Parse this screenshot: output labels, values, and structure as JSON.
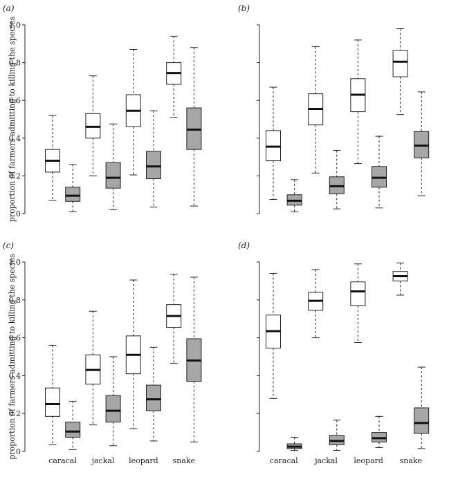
{
  "colors": {
    "axis": "#222222",
    "box_light": "#ffffff",
    "box_dark": "#a6a6a6",
    "median": "#111111"
  },
  "chart_data": [
    {
      "type": "box",
      "panel_label": "(a)",
      "ylabel": "proportion of farmers admitting to killing the species",
      "ylim": [
        0,
        1
      ],
      "yticks": [
        "0",
        "0.2",
        "0.4",
        "0.6",
        "0.8",
        "1.0"
      ],
      "show_yticklabels": true,
      "categories": [
        "caracal",
        "jackal",
        "leopard",
        "snake"
      ],
      "show_xticklabels": false,
      "boxes": [
        {
          "category": "caracal",
          "shade": "light",
          "whisker_low": 0.07,
          "q1": 0.22,
          "median": 0.28,
          "q3": 0.34,
          "whisker_high": 0.52
        },
        {
          "category": "caracal",
          "shade": "dark",
          "whisker_low": 0.01,
          "q1": 0.065,
          "median": 0.095,
          "q3": 0.14,
          "whisker_high": 0.26
        },
        {
          "category": "jackal",
          "shade": "light",
          "whisker_low": 0.2,
          "q1": 0.4,
          "median": 0.46,
          "q3": 0.53,
          "whisker_high": 0.73
        },
        {
          "category": "jackal",
          "shade": "dark",
          "whisker_low": 0.02,
          "q1": 0.135,
          "median": 0.19,
          "q3": 0.27,
          "whisker_high": 0.475
        },
        {
          "category": "leopard",
          "shade": "light",
          "whisker_low": 0.205,
          "q1": 0.46,
          "median": 0.545,
          "q3": 0.63,
          "whisker_high": 0.87
        },
        {
          "category": "leopard",
          "shade": "dark",
          "whisker_low": 0.035,
          "q1": 0.185,
          "median": 0.25,
          "q3": 0.33,
          "whisker_high": 0.545
        },
        {
          "category": "snake",
          "shade": "light",
          "whisker_low": 0.51,
          "q1": 0.685,
          "median": 0.745,
          "q3": 0.8,
          "whisker_high": 0.94
        },
        {
          "category": "snake",
          "shade": "dark",
          "whisker_low": 0.04,
          "q1": 0.34,
          "median": 0.445,
          "q3": 0.56,
          "whisker_high": 0.88
        }
      ]
    },
    {
      "type": "box",
      "panel_label": "(b)",
      "ylabel": "",
      "ylim": [
        0,
        1
      ],
      "yticks": [
        "0",
        "0.2",
        "0.4",
        "0.6",
        "0.8",
        "1.0"
      ],
      "show_yticklabels": false,
      "categories": [
        "caracal",
        "jackal",
        "leopard",
        "snake"
      ],
      "show_xticklabels": false,
      "boxes": [
        {
          "category": "caracal",
          "shade": "light",
          "whisker_low": 0.075,
          "q1": 0.28,
          "median": 0.355,
          "q3": 0.44,
          "whisker_high": 0.67
        },
        {
          "category": "caracal",
          "shade": "dark",
          "whisker_low": 0.01,
          "q1": 0.045,
          "median": 0.068,
          "q3": 0.1,
          "whisker_high": 0.18
        },
        {
          "category": "jackal",
          "shade": "light",
          "whisker_low": 0.215,
          "q1": 0.47,
          "median": 0.555,
          "q3": 0.635,
          "whisker_high": 0.885
        },
        {
          "category": "jackal",
          "shade": "dark",
          "whisker_low": 0.025,
          "q1": 0.105,
          "median": 0.145,
          "q3": 0.195,
          "whisker_high": 0.335
        },
        {
          "category": "leopard",
          "shade": "light",
          "whisker_low": 0.265,
          "q1": 0.54,
          "median": 0.63,
          "q3": 0.715,
          "whisker_high": 0.92
        },
        {
          "category": "leopard",
          "shade": "dark",
          "whisker_low": 0.03,
          "q1": 0.14,
          "median": 0.19,
          "q3": 0.25,
          "whisker_high": 0.41
        },
        {
          "category": "snake",
          "shade": "light",
          "whisker_low": 0.525,
          "q1": 0.725,
          "median": 0.805,
          "q3": 0.865,
          "whisker_high": 0.98
        },
        {
          "category": "snake",
          "shade": "dark",
          "whisker_low": 0.095,
          "q1": 0.295,
          "median": 0.36,
          "q3": 0.435,
          "whisker_high": 0.645
        }
      ]
    },
    {
      "type": "box",
      "panel_label": "(c)",
      "ylabel": "proportion of farmers admitting to killing the species",
      "ylim": [
        0,
        1
      ],
      "yticks": [
        "0",
        "0.2",
        "0.4",
        "0.6",
        "0.8",
        "1.0"
      ],
      "show_yticklabels": true,
      "categories": [
        "caracal",
        "jackal",
        "leopard",
        "snake"
      ],
      "show_xticklabels": true,
      "boxes": [
        {
          "category": "caracal",
          "shade": "light",
          "whisker_low": 0.035,
          "q1": 0.185,
          "median": 0.25,
          "q3": 0.335,
          "whisker_high": 0.56
        },
        {
          "category": "caracal",
          "shade": "dark",
          "whisker_low": 0.01,
          "q1": 0.075,
          "median": 0.105,
          "q3": 0.155,
          "whisker_high": 0.265
        },
        {
          "category": "jackal",
          "shade": "light",
          "whisker_low": 0.14,
          "q1": 0.355,
          "median": 0.43,
          "q3": 0.51,
          "whisker_high": 0.74
        },
        {
          "category": "jackal",
          "shade": "dark",
          "whisker_low": 0.03,
          "q1": 0.155,
          "median": 0.215,
          "q3": 0.295,
          "whisker_high": 0.5
        },
        {
          "category": "leopard",
          "shade": "light",
          "whisker_low": 0.12,
          "q1": 0.41,
          "median": 0.51,
          "q3": 0.61,
          "whisker_high": 0.905
        },
        {
          "category": "leopard",
          "shade": "dark",
          "whisker_low": 0.055,
          "q1": 0.215,
          "median": 0.275,
          "q3": 0.35,
          "whisker_high": 0.55
        },
        {
          "category": "snake",
          "shade": "light",
          "whisker_low": 0.465,
          "q1": 0.655,
          "median": 0.715,
          "q3": 0.775,
          "whisker_high": 0.935
        },
        {
          "category": "snake",
          "shade": "dark",
          "whisker_low": 0.05,
          "q1": 0.37,
          "median": 0.48,
          "q3": 0.595,
          "whisker_high": 0.92
        }
      ]
    },
    {
      "type": "box",
      "panel_label": "(d)",
      "ylabel": "",
      "ylim": [
        0,
        1
      ],
      "yticks": [
        "0",
        "0.2",
        "0.4",
        "0.6",
        "0.8",
        "1.0"
      ],
      "show_yticklabels": false,
      "categories": [
        "caracal",
        "jackal",
        "leopard",
        "snake"
      ],
      "show_xticklabels": true,
      "boxes": [
        {
          "category": "caracal",
          "shade": "light",
          "whisker_low": 0.28,
          "q1": 0.545,
          "median": 0.635,
          "q3": 0.72,
          "whisker_high": 0.94
        },
        {
          "category": "caracal",
          "shade": "dark",
          "whisker_low": 0.005,
          "q1": 0.015,
          "median": 0.025,
          "q3": 0.04,
          "whisker_high": 0.075
        },
        {
          "category": "jackal",
          "shade": "light",
          "whisker_low": 0.6,
          "q1": 0.745,
          "median": 0.795,
          "q3": 0.84,
          "whisker_high": 0.96
        },
        {
          "category": "jackal",
          "shade": "dark",
          "whisker_low": 0.005,
          "q1": 0.035,
          "median": 0.055,
          "q3": 0.085,
          "whisker_high": 0.165
        },
        {
          "category": "leopard",
          "shade": "light",
          "whisker_low": 0.575,
          "q1": 0.77,
          "median": 0.845,
          "q3": 0.895,
          "whisker_high": 0.99
        },
        {
          "category": "leopard",
          "shade": "dark",
          "whisker_low": 0.02,
          "q1": 0.05,
          "median": 0.07,
          "q3": 0.1,
          "whisker_high": 0.185
        },
        {
          "category": "snake",
          "shade": "light",
          "whisker_low": 0.825,
          "q1": 0.9,
          "median": 0.925,
          "q3": 0.95,
          "whisker_high": 0.995
        },
        {
          "category": "snake",
          "shade": "dark",
          "whisker_low": 0.015,
          "q1": 0.095,
          "median": 0.15,
          "q3": 0.23,
          "whisker_high": 0.445
        }
      ]
    }
  ]
}
